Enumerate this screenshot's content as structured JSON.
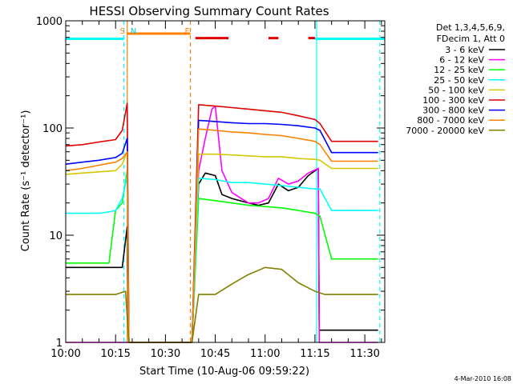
{
  "chart_data": {
    "type": "line",
    "title": "HESSI Observing Summary Count Rates",
    "xlabel": "Start Time (10-Aug-06 09:59:22)",
    "ylabel": "Count Rate (s⁻¹ detector⁻¹)",
    "yscale": "log",
    "ylim": [
      1,
      1000
    ],
    "xlim_minutes": [
      0,
      96
    ],
    "x_unit": "minutes after 10:00",
    "x_tick_labels": [
      "10:00",
      "10:15",
      "10:30",
      "10:45",
      "11:00",
      "11:15",
      "11:30"
    ],
    "x_tick_minutes": [
      0,
      15,
      30,
      45,
      60,
      75,
      90
    ],
    "y_tick_labels": [
      "1",
      "10",
      "100",
      "1000"
    ],
    "y_tick_values": [
      1,
      10,
      100,
      1000
    ],
    "legend_header": [
      "Det 1,3,4,5,6,9,",
      "FDecim 1, Att 0"
    ],
    "legend_position": "right",
    "timestamp": "4-Mar-2010 16:08",
    "markers": [
      {
        "label": "S",
        "minute": 18.0,
        "color": "#ff8000"
      },
      {
        "label": "N",
        "minute": 19.0,
        "color": "#00d0d0"
      },
      {
        "label": "F",
        "minute": 37.5,
        "color": "#ff8000"
      }
    ],
    "series": [
      {
        "name": "3 - 6 keV",
        "color": "#000000",
        "x": [
          0,
          5,
          10,
          13,
          15,
          17,
          18.5,
          19,
          38,
          40,
          42,
          45,
          47,
          50,
          55,
          58,
          61,
          64,
          67,
          70,
          73,
          76,
          76.3,
          80,
          85,
          90,
          94
        ],
        "y": [
          5,
          5,
          5,
          5,
          5,
          5,
          12,
          1,
          1,
          30,
          38,
          36,
          24,
          22,
          20,
          19,
          20,
          30,
          26,
          28,
          36,
          42,
          1.3,
          1.3,
          1.3,
          1.3,
          1.3
        ]
      },
      {
        "name": "6 - 12 keV",
        "color": "#ff00ff",
        "x": [
          0,
          10,
          13,
          15,
          17,
          18.5,
          19,
          38,
          40,
          42,
          44,
          45,
          47,
          50,
          55,
          58,
          61,
          64,
          67,
          70,
          73,
          76,
          76.3,
          80,
          85,
          90,
          94
        ],
        "y": [
          1,
          1,
          1,
          1,
          1,
          1,
          1,
          1,
          40,
          80,
          150,
          160,
          40,
          25,
          20,
          20,
          22,
          34,
          30,
          32,
          38,
          42,
          1,
          1,
          1,
          1,
          1
        ]
      },
      {
        "name": "12 - 25 keV",
        "color": "#00ff00",
        "x": [
          0,
          5,
          10,
          13,
          15,
          17,
          18.5,
          19,
          38,
          40,
          45,
          50,
          55,
          60,
          65,
          70,
          75,
          76.5,
          80,
          85,
          90,
          94
        ],
        "y": [
          5.5,
          5.5,
          5.5,
          5.5,
          17,
          20,
          40,
          1,
          1,
          22,
          21,
          20,
          19,
          18.5,
          18,
          17,
          16,
          15,
          6,
          6,
          6,
          6
        ]
      },
      {
        "name": "25 - 50 keV",
        "color": "#00ffff",
        "x": [
          0,
          5,
          10,
          13,
          15,
          17,
          18.5,
          19,
          38,
          40,
          45,
          50,
          55,
          60,
          65,
          70,
          75,
          76.5,
          80,
          85,
          90,
          94
        ],
        "y": [
          16,
          16,
          16,
          16.5,
          17,
          22,
          35,
          1,
          1,
          34,
          33,
          31,
          31,
          30,
          29,
          28,
          27,
          27,
          17,
          17,
          17,
          17
        ]
      },
      {
        "name": "50 - 100 keV",
        "color": "#d4c800",
        "x": [
          0,
          5,
          10,
          15,
          17,
          18.5,
          19,
          38,
          40,
          45,
          50,
          55,
          60,
          65,
          70,
          75,
          76.5,
          80,
          85,
          90,
          94
        ],
        "y": [
          37,
          38,
          39,
          40,
          46,
          60,
          1,
          1,
          57,
          57,
          56,
          55,
          54,
          54,
          52,
          51,
          50,
          42,
          42,
          42,
          42
        ]
      },
      {
        "name": "100 - 300 keV",
        "color": "#e00000",
        "x": [
          0,
          5,
          10,
          15,
          17,
          18.5,
          19,
          38,
          40,
          45,
          50,
          55,
          60,
          65,
          70,
          75,
          76.5,
          80,
          85,
          90,
          94
        ],
        "y": [
          68,
          70,
          74,
          78,
          95,
          170,
          1,
          1,
          165,
          160,
          155,
          150,
          145,
          140,
          130,
          120,
          110,
          75,
          75,
          75,
          75
        ]
      },
      {
        "name": "300 - 800 keV",
        "color": "#0000ff",
        "x": [
          0,
          5,
          10,
          15,
          17,
          18.5,
          19,
          38,
          40,
          45,
          50,
          55,
          60,
          65,
          70,
          75,
          76.5,
          80,
          85,
          90,
          94
        ],
        "y": [
          46,
          48,
          50,
          53,
          58,
          80,
          1,
          1,
          118,
          115,
          112,
          110,
          110,
          108,
          105,
          100,
          95,
          59,
          59,
          59,
          59
        ]
      },
      {
        "name": "800 - 7000 keV",
        "color": "#ff8000",
        "x": [
          0,
          5,
          10,
          15,
          17,
          18.5,
          19,
          38,
          40,
          45,
          50,
          55,
          60,
          65,
          70,
          75,
          76.5,
          80,
          85,
          90,
          94
        ],
        "y": [
          40,
          42,
          45,
          48,
          52,
          60,
          1,
          1,
          98,
          95,
          92,
          90,
          87,
          85,
          80,
          75,
          70,
          49,
          49,
          49,
          49
        ]
      },
      {
        "name": "7000 - 20000 keV",
        "color": "#808000",
        "x": [
          0,
          5,
          10,
          15,
          18,
          19,
          38,
          40,
          45,
          50,
          55,
          60,
          65,
          70,
          75,
          78,
          82,
          86,
          90,
          94
        ],
        "y": [
          2.8,
          2.8,
          2.8,
          2.8,
          3,
          1,
          1,
          2.8,
          2.8,
          3.5,
          4.3,
          5.0,
          4.8,
          3.6,
          3.0,
          2.8,
          2.8,
          2.8,
          2.8,
          2.8
        ]
      }
    ],
    "flag_bars": [
      {
        "color": "#00ffff",
        "y": 680,
        "x": [
          [
            0,
            17.5
          ],
          [
            75,
            96
          ]
        ]
      },
      {
        "color": "#ff8000",
        "y": 760,
        "x": [
          [
            18.5,
            37.5
          ]
        ]
      },
      {
        "color": "#e00000",
        "y": 690,
        "x": [
          [
            39,
            49
          ],
          [
            61,
            64
          ],
          [
            73,
            75
          ]
        ]
      }
    ],
    "vertical_lines": [
      {
        "minute": 17.5,
        "color": "#00ffff",
        "dash": true
      },
      {
        "minute": 18.5,
        "color": "#ff8000",
        "dash": false
      },
      {
        "minute": 37.5,
        "color": "#ff8000",
        "dash": true
      },
      {
        "minute": 75.5,
        "color": "#00ffff",
        "dash": false
      },
      {
        "minute": 94.5,
        "color": "#00ffff",
        "dash": true
      }
    ]
  }
}
